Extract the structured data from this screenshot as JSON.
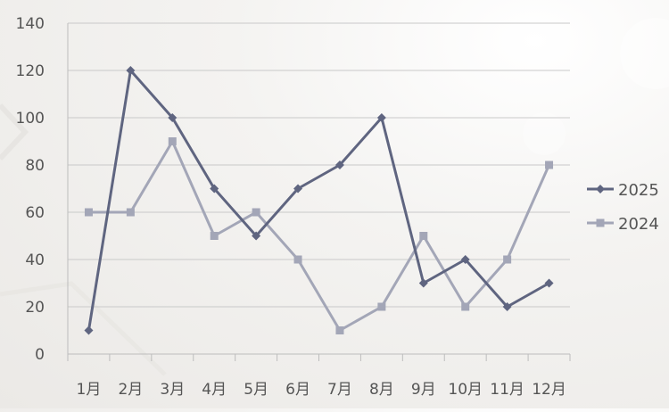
{
  "chart_data": {
    "type": "line",
    "categories": [
      "1月",
      "2月",
      "3月",
      "4月",
      "5月",
      "6月",
      "7月",
      "8月",
      "9月",
      "10月",
      "11月",
      "12月"
    ],
    "series": [
      {
        "name": "2025",
        "values": [
          10,
          120,
          100,
          70,
          50,
          70,
          80,
          100,
          30,
          40,
          20,
          30
        ],
        "color": "#5f6580",
        "marker": "diamond"
      },
      {
        "name": "2024",
        "values": [
          60,
          60,
          90,
          50,
          60,
          40,
          10,
          20,
          50,
          20,
          40,
          80
        ],
        "color": "#a3a6b7",
        "marker": "square"
      }
    ],
    "title": "",
    "xlabel": "",
    "ylabel": "",
    "ylim": [
      0,
      140
    ],
    "yticks": [
      "0",
      "20",
      "40",
      "60",
      "80",
      "100",
      "120",
      "140"
    ],
    "grid": true,
    "legend_position": "right"
  }
}
